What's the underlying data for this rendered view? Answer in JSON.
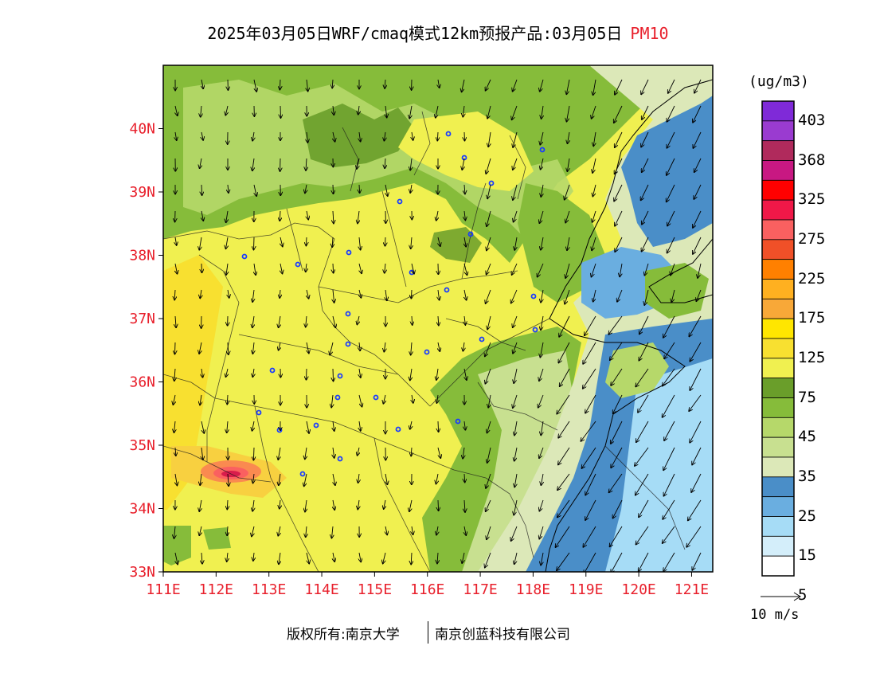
{
  "title": {
    "main": "2025年03月05日WRF/cmaq模式12km预报产品:03月05日",
    "pollutant": "PM10"
  },
  "map": {
    "lat_labels": [
      "40N",
      "39N",
      "38N",
      "37N",
      "36N",
      "35N",
      "34N",
      "33N"
    ],
    "lon_labels": [
      "111E",
      "112E",
      "113E",
      "114E",
      "115E",
      "116E",
      "117E",
      "118E",
      "119E",
      "120E",
      "121E"
    ],
    "lat_range": [
      33,
      41
    ],
    "lon_range": [
      111,
      121.4
    ],
    "axis_label_color": "#e8202c"
  },
  "colorbar": {
    "unit": "(ug/m3)",
    "labels": [
      "403",
      "368",
      "325",
      "275",
      "225",
      "175",
      "125",
      "75",
      "45",
      "35",
      "25",
      "15",
      "5"
    ],
    "colors": [
      "#7f2ad8",
      "#9a3bd0",
      "#b02a5c",
      "#c81882",
      "#ff0000",
      "#f01848",
      "#fa6060",
      "#f05028",
      "#ff8000",
      "#ffb020",
      "#f8a838",
      "#ffe600",
      "#f8e030",
      "#f0f050",
      "#6a9e2a",
      "#86bc3a",
      "#b6d86a",
      "#c8e090",
      "#dce8b8",
      "#4a8ec8",
      "#6aaee0",
      "#a6dcf6",
      "#d4eefa",
      "#ffffff"
    ]
  },
  "wind_reference": {
    "label": "10 m/s"
  },
  "footer": {
    "copyright": "版权所有:南京大学",
    "org": "南京创蓝科技有限公司"
  }
}
